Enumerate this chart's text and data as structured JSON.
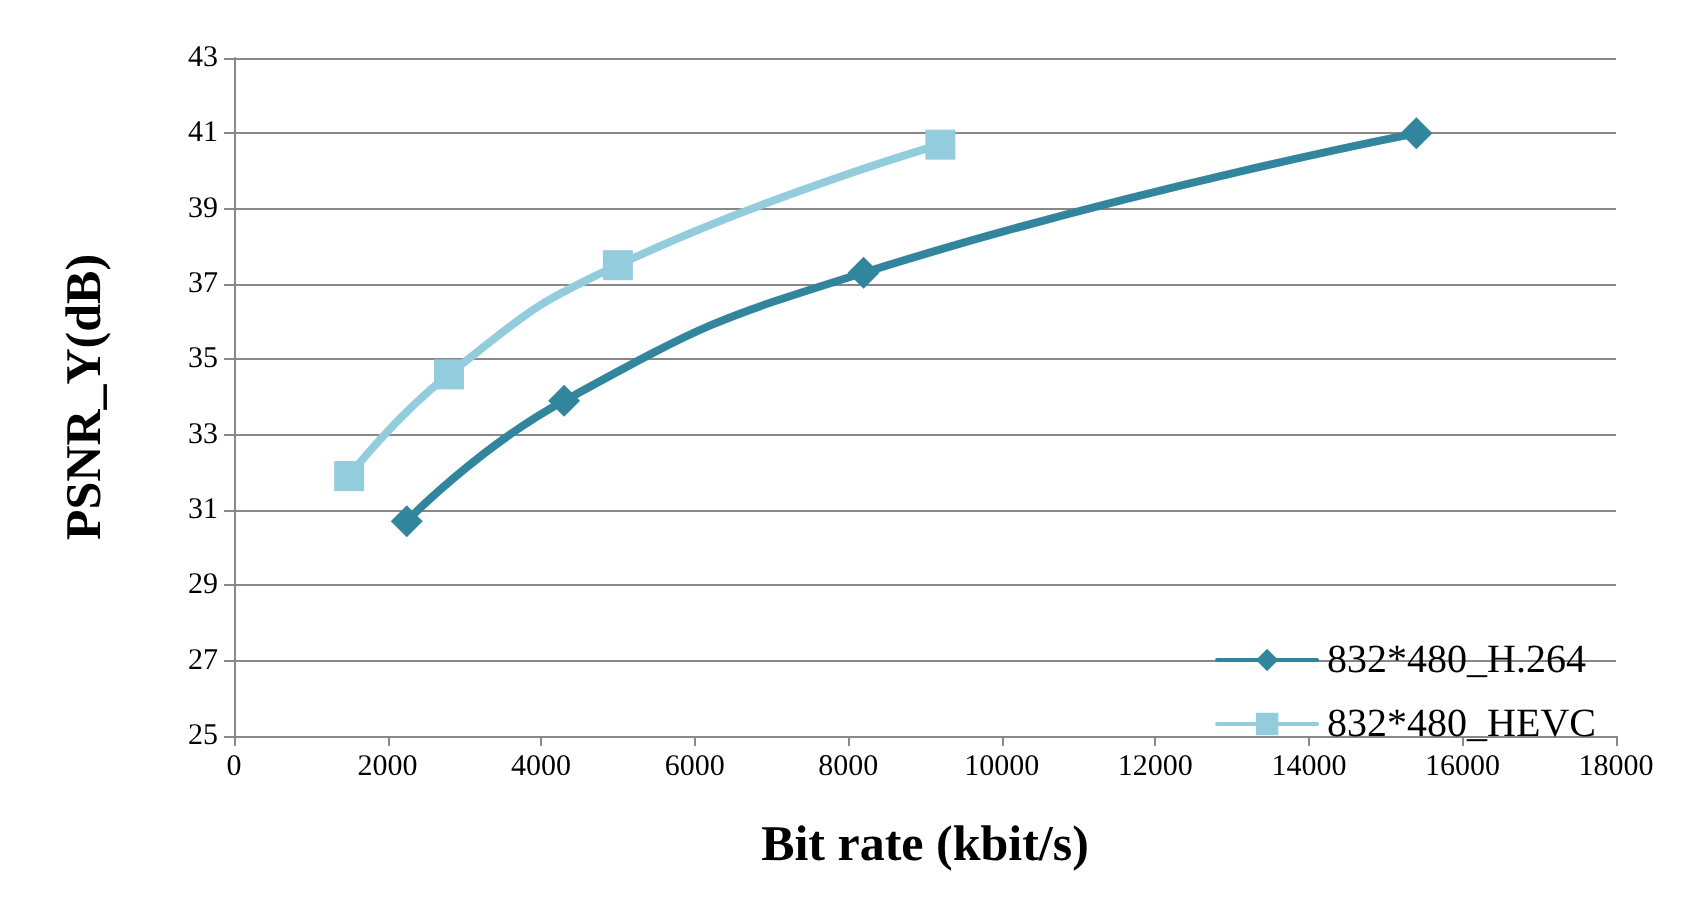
{
  "chart_data": {
    "type": "line",
    "xlabel": "Bit rate (kbit/s)",
    "ylabel": "PSNR_Y(dB)",
    "xlim": [
      0,
      18000
    ],
    "xticks": [
      0,
      2000,
      4000,
      6000,
      8000,
      10000,
      12000,
      14000,
      16000,
      18000
    ],
    "ylim": [
      25,
      43
    ],
    "yticks": [
      25,
      27,
      29,
      31,
      33,
      35,
      37,
      39,
      41,
      43
    ],
    "grid": "y",
    "legend": "bottom right",
    "series": [
      {
        "name": "832*480_H.264",
        "color": "#31859c",
        "marker": "diamond",
        "x": [
          2250,
          4300,
          8200,
          15400
        ],
        "values": [
          30.7,
          33.9,
          37.3,
          41.0
        ]
      },
      {
        "name": "832*480_HEVC",
        "color": "#93cddd",
        "marker": "square",
        "x": [
          1500,
          2800,
          5000,
          9200
        ],
        "values": [
          31.9,
          34.6,
          37.5,
          40.7
        ]
      }
    ]
  }
}
